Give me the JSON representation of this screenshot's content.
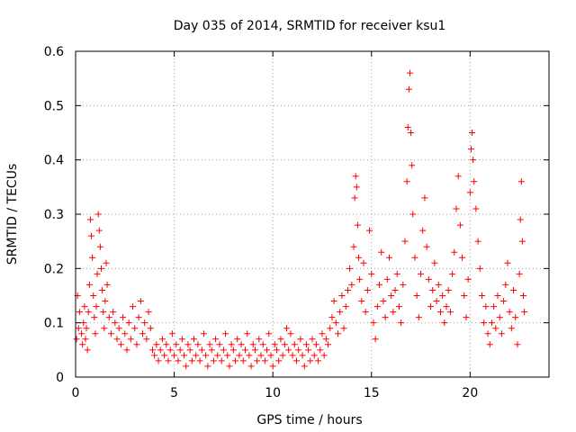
{
  "chart_data": {
    "type": "scatter",
    "title": "Day 035 of 2014, SRMTID for receiver ksu1",
    "xlabel": "GPS time / hours",
    "ylabel": "SRMTID / TECUs",
    "xlim": [
      0,
      24
    ],
    "ylim": [
      0,
      0.6
    ],
    "x_ticks": [
      0,
      5,
      10,
      15,
      20
    ],
    "x_tick_labels": [
      "0",
      "5",
      "10",
      "15",
      "20"
    ],
    "y_ticks": [
      0,
      0.1,
      0.2,
      0.3,
      0.4,
      0.5,
      0.6
    ],
    "y_tick_labels": [
      "0",
      "0.1",
      "0.2",
      "0.3",
      "0.4",
      "0.5",
      "0.6"
    ],
    "grid": true,
    "marker": "+",
    "color": "#ff0000",
    "series": [
      {
        "name": "SRMTID",
        "points": [
          [
            0.05,
            0.07
          ],
          [
            0.1,
            0.15
          ],
          [
            0.15,
            0.09
          ],
          [
            0.2,
            0.12
          ],
          [
            0.3,
            0.08
          ],
          [
            0.35,
            0.06
          ],
          [
            0.4,
            0.1
          ],
          [
            0.45,
            0.13
          ],
          [
            0.5,
            0.07
          ],
          [
            0.55,
            0.09
          ],
          [
            0.6,
            0.05
          ],
          [
            0.65,
            0.12
          ],
          [
            0.7,
            0.17
          ],
          [
            0.75,
            0.29
          ],
          [
            0.8,
            0.26
          ],
          [
            0.85,
            0.22
          ],
          [
            0.9,
            0.15
          ],
          [
            0.95,
            0.11
          ],
          [
            1.0,
            0.08
          ],
          [
            1.05,
            0.13
          ],
          [
            1.1,
            0.19
          ],
          [
            1.15,
            0.3
          ],
          [
            1.2,
            0.27
          ],
          [
            1.25,
            0.24
          ],
          [
            1.3,
            0.2
          ],
          [
            1.35,
            0.16
          ],
          [
            1.4,
            0.12
          ],
          [
            1.45,
            0.09
          ],
          [
            1.5,
            0.14
          ],
          [
            1.55,
            0.21
          ],
          [
            1.6,
            0.17
          ],
          [
            1.7,
            0.11
          ],
          [
            1.8,
            0.08
          ],
          [
            1.9,
            0.12
          ],
          [
            2.0,
            0.1
          ],
          [
            2.1,
            0.07
          ],
          [
            2.2,
            0.09
          ],
          [
            2.3,
            0.06
          ],
          [
            2.4,
            0.11
          ],
          [
            2.5,
            0.08
          ],
          [
            2.6,
            0.05
          ],
          [
            2.7,
            0.1
          ],
          [
            2.8,
            0.07
          ],
          [
            2.9,
            0.13
          ],
          [
            3.0,
            0.09
          ],
          [
            3.1,
            0.06
          ],
          [
            3.2,
            0.11
          ],
          [
            3.3,
            0.14
          ],
          [
            3.4,
            0.08
          ],
          [
            3.5,
            0.1
          ],
          [
            3.6,
            0.07
          ],
          [
            3.7,
            0.12
          ],
          [
            3.8,
            0.09
          ],
          [
            3.9,
            0.05
          ],
          [
            4.0,
            0.04
          ],
          [
            4.1,
            0.06
          ],
          [
            4.2,
            0.03
          ],
          [
            4.3,
            0.05
          ],
          [
            4.4,
            0.07
          ],
          [
            4.5,
            0.04
          ],
          [
            4.6,
            0.06
          ],
          [
            4.7,
            0.03
          ],
          [
            4.8,
            0.05
          ],
          [
            4.9,
            0.08
          ],
          [
            5.0,
            0.04
          ],
          [
            5.1,
            0.06
          ],
          [
            5.2,
            0.03
          ],
          [
            5.3,
            0.05
          ],
          [
            5.4,
            0.07
          ],
          [
            5.5,
            0.04
          ],
          [
            5.6,
            0.02
          ],
          [
            5.7,
            0.06
          ],
          [
            5.8,
            0.05
          ],
          [
            5.9,
            0.03
          ],
          [
            6.0,
            0.07
          ],
          [
            6.1,
            0.04
          ],
          [
            6.2,
            0.06
          ],
          [
            6.3,
            0.03
          ],
          [
            6.4,
            0.05
          ],
          [
            6.5,
            0.08
          ],
          [
            6.6,
            0.04
          ],
          [
            6.7,
            0.02
          ],
          [
            6.8,
            0.06
          ],
          [
            6.9,
            0.05
          ],
          [
            7.0,
            0.03
          ],
          [
            7.1,
            0.07
          ],
          [
            7.2,
            0.04
          ],
          [
            7.3,
            0.06
          ],
          [
            7.4,
            0.03
          ],
          [
            7.5,
            0.05
          ],
          [
            7.6,
            0.08
          ],
          [
            7.7,
            0.04
          ],
          [
            7.8,
            0.02
          ],
          [
            7.9,
            0.06
          ],
          [
            8.0,
            0.05
          ],
          [
            8.1,
            0.03
          ],
          [
            8.2,
            0.07
          ],
          [
            8.3,
            0.04
          ],
          [
            8.4,
            0.06
          ],
          [
            8.5,
            0.03
          ],
          [
            8.6,
            0.05
          ],
          [
            8.7,
            0.08
          ],
          [
            8.8,
            0.04
          ],
          [
            8.9,
            0.02
          ],
          [
            9.0,
            0.06
          ],
          [
            9.1,
            0.05
          ],
          [
            9.2,
            0.03
          ],
          [
            9.3,
            0.07
          ],
          [
            9.4,
            0.04
          ],
          [
            9.5,
            0.06
          ],
          [
            9.6,
            0.03
          ],
          [
            9.7,
            0.05
          ],
          [
            9.8,
            0.08
          ],
          [
            9.9,
            0.04
          ],
          [
            10.0,
            0.02
          ],
          [
            10.1,
            0.06
          ],
          [
            10.2,
            0.05
          ],
          [
            10.3,
            0.03
          ],
          [
            10.4,
            0.07
          ],
          [
            10.5,
            0.04
          ],
          [
            10.6,
            0.06
          ],
          [
            10.7,
            0.09
          ],
          [
            10.8,
            0.05
          ],
          [
            10.9,
            0.08
          ],
          [
            11.0,
            0.04
          ],
          [
            11.1,
            0.06
          ],
          [
            11.2,
            0.03
          ],
          [
            11.3,
            0.05
          ],
          [
            11.4,
            0.07
          ],
          [
            11.5,
            0.04
          ],
          [
            11.6,
            0.02
          ],
          [
            11.7,
            0.06
          ],
          [
            11.8,
            0.05
          ],
          [
            11.9,
            0.03
          ],
          [
            12.0,
            0.07
          ],
          [
            12.1,
            0.04
          ],
          [
            12.2,
            0.06
          ],
          [
            12.3,
            0.03
          ],
          [
            12.4,
            0.05
          ],
          [
            12.5,
            0.08
          ],
          [
            12.6,
            0.04
          ],
          [
            12.7,
            0.07
          ],
          [
            12.8,
            0.06
          ],
          [
            12.9,
            0.09
          ],
          [
            13.0,
            0.11
          ],
          [
            13.1,
            0.14
          ],
          [
            13.2,
            0.1
          ],
          [
            13.3,
            0.08
          ],
          [
            13.4,
            0.12
          ],
          [
            13.5,
            0.15
          ],
          [
            13.6,
            0.09
          ],
          [
            13.7,
            0.13
          ],
          [
            13.8,
            0.16
          ],
          [
            13.9,
            0.2
          ],
          [
            14.0,
            0.17
          ],
          [
            14.1,
            0.24
          ],
          [
            14.15,
            0.33
          ],
          [
            14.2,
            0.37
          ],
          [
            14.25,
            0.35
          ],
          [
            14.3,
            0.28
          ],
          [
            14.35,
            0.22
          ],
          [
            14.4,
            0.18
          ],
          [
            14.5,
            0.14
          ],
          [
            14.6,
            0.21
          ],
          [
            14.7,
            0.12
          ],
          [
            14.8,
            0.16
          ],
          [
            14.9,
            0.27
          ],
          [
            15.0,
            0.19
          ],
          [
            15.1,
            0.1
          ],
          [
            15.2,
            0.07
          ],
          [
            15.3,
            0.13
          ],
          [
            15.4,
            0.17
          ],
          [
            15.5,
            0.23
          ],
          [
            15.6,
            0.14
          ],
          [
            15.7,
            0.11
          ],
          [
            15.8,
            0.18
          ],
          [
            15.9,
            0.22
          ],
          [
            16.0,
            0.15
          ],
          [
            16.1,
            0.12
          ],
          [
            16.2,
            0.16
          ],
          [
            16.3,
            0.19
          ],
          [
            16.4,
            0.13
          ],
          [
            16.5,
            0.1
          ],
          [
            16.6,
            0.17
          ],
          [
            16.7,
            0.25
          ],
          [
            16.8,
            0.36
          ],
          [
            16.85,
            0.46
          ],
          [
            16.9,
            0.53
          ],
          [
            16.95,
            0.56
          ],
          [
            17.0,
            0.45
          ],
          [
            17.05,
            0.39
          ],
          [
            17.1,
            0.3
          ],
          [
            17.2,
            0.22
          ],
          [
            17.3,
            0.15
          ],
          [
            17.4,
            0.11
          ],
          [
            17.5,
            0.19
          ],
          [
            17.6,
            0.27
          ],
          [
            17.7,
            0.33
          ],
          [
            17.8,
            0.24
          ],
          [
            17.9,
            0.18
          ],
          [
            18.0,
            0.13
          ],
          [
            18.1,
            0.16
          ],
          [
            18.2,
            0.21
          ],
          [
            18.3,
            0.14
          ],
          [
            18.4,
            0.17
          ],
          [
            18.5,
            0.12
          ],
          [
            18.6,
            0.15
          ],
          [
            18.7,
            0.1
          ],
          [
            18.8,
            0.13
          ],
          [
            18.9,
            0.16
          ],
          [
            19.0,
            0.12
          ],
          [
            19.1,
            0.19
          ],
          [
            19.2,
            0.23
          ],
          [
            19.3,
            0.31
          ],
          [
            19.4,
            0.37
          ],
          [
            19.5,
            0.28
          ],
          [
            19.6,
            0.22
          ],
          [
            19.7,
            0.15
          ],
          [
            19.8,
            0.11
          ],
          [
            19.9,
            0.18
          ],
          [
            20.0,
            0.34
          ],
          [
            20.05,
            0.42
          ],
          [
            20.1,
            0.45
          ],
          [
            20.15,
            0.4
          ],
          [
            20.2,
            0.36
          ],
          [
            20.3,
            0.31
          ],
          [
            20.4,
            0.25
          ],
          [
            20.5,
            0.2
          ],
          [
            20.6,
            0.15
          ],
          [
            20.7,
            0.1
          ],
          [
            20.8,
            0.13
          ],
          [
            20.9,
            0.08
          ],
          [
            21.0,
            0.06
          ],
          [
            21.1,
            0.1
          ],
          [
            21.2,
            0.13
          ],
          [
            21.3,
            0.09
          ],
          [
            21.4,
            0.15
          ],
          [
            21.5,
            0.11
          ],
          [
            21.6,
            0.08
          ],
          [
            21.7,
            0.14
          ],
          [
            21.8,
            0.17
          ],
          [
            21.9,
            0.21
          ],
          [
            22.0,
            0.12
          ],
          [
            22.1,
            0.09
          ],
          [
            22.2,
            0.16
          ],
          [
            22.3,
            0.11
          ],
          [
            22.4,
            0.06
          ],
          [
            22.5,
            0.19
          ],
          [
            22.55,
            0.29
          ],
          [
            22.6,
            0.36
          ],
          [
            22.65,
            0.25
          ],
          [
            22.7,
            0.15
          ],
          [
            22.75,
            0.12
          ]
        ]
      }
    ]
  }
}
